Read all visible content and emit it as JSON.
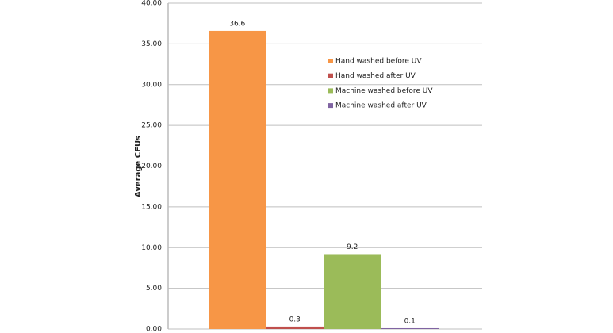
{
  "chart_data": {
    "type": "bar",
    "y_label": "Average CFUs",
    "series": [
      {
        "name": "Hand washed before UV",
        "color": "#f79646",
        "values": [
          36.6
        ]
      },
      {
        "name": "Hand washed after UV",
        "color": "#c0504d",
        "values": [
          0.3
        ]
      },
      {
        "name": "Machine washed before UV",
        "color": "#9bbb59",
        "values": [
          9.2
        ]
      },
      {
        "name": "Machine washed after UV",
        "color": "#8064a2",
        "values": [
          0.1
        ]
      }
    ],
    "ylim": [
      0,
      40
    ],
    "yticks": [
      {
        "value": 0,
        "label": "0.00"
      },
      {
        "value": 5,
        "label": "5.00"
      },
      {
        "value": 10,
        "label": "10.00"
      },
      {
        "value": 15,
        "label": "15.00"
      },
      {
        "value": 20,
        "label": "20.00"
      },
      {
        "value": 25,
        "label": "25.00"
      },
      {
        "value": 30,
        "label": "30.00"
      },
      {
        "value": 35,
        "label": "35.00"
      },
      {
        "value": 40,
        "label": "40.00"
      }
    ],
    "grid": true
  }
}
